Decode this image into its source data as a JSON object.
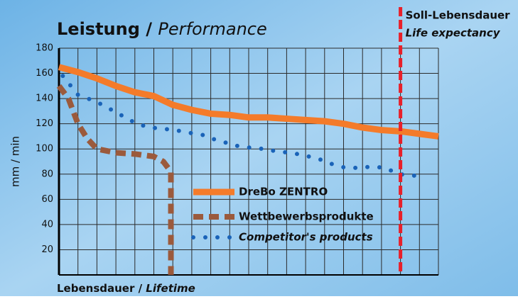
{
  "chart_data": {
    "type": "line",
    "title": [
      "Leistung /",
      "Performance"
    ],
    "x_label": [
      "Lebensdauer /",
      "Lifetime"
    ],
    "y_label": "mm / min",
    "annotation": {
      "x": 18,
      "color": "#e8202a",
      "text": [
        "Soll-Lebensdauer",
        "Life expectancy"
      ]
    },
    "xlim": [
      0,
      20
    ],
    "xticks": [
      0,
      1,
      2,
      3,
      4,
      5,
      6,
      7,
      8,
      9,
      10,
      11,
      12,
      13,
      14,
      15,
      16,
      17,
      18,
      19,
      20
    ],
    "ylim": [
      0,
      180
    ],
    "yticks": [
      20,
      40,
      60,
      80,
      100,
      120,
      140,
      160,
      180
    ],
    "grid": true,
    "series": [
      {
        "name": "DreBo ZENTRO",
        "color": "#f47b2a",
        "style": "solid",
        "x": [
          0,
          1,
          2,
          3,
          4,
          5,
          6,
          7,
          8,
          9,
          10,
          11,
          12,
          13,
          14,
          15,
          16,
          17,
          18,
          19,
          20
        ],
        "values": [
          165,
          161,
          156,
          150,
          145,
          142,
          135,
          131,
          128,
          127,
          125,
          125,
          124,
          123,
          122,
          120,
          117,
          115,
          114,
          112,
          110
        ]
      },
      {
        "name": "Wettbewerbsprodukte",
        "color": "#9b5a3c",
        "style": "dashed",
        "x": [
          0,
          0.5,
          1,
          1.5,
          2,
          3,
          4,
          5,
          5.5,
          5.9,
          5.9
        ],
        "values": [
          150,
          140,
          120,
          108,
          100,
          97,
          96,
          94,
          90,
          82,
          0
        ]
      },
      {
        "name": "Competitor's products",
        "color": "#1a63b8",
        "style": "dotted",
        "x": [
          0.2,
          1.0,
          1.7,
          2.3,
          2.9,
          3.5,
          4.1,
          4.8,
          5.5,
          6.1,
          6.8,
          7.6,
          8.1,
          8.8,
          9.5,
          10.1,
          10.8,
          11.5,
          12.2,
          12.9,
          13.7,
          14.4,
          15.1,
          15.8,
          16.5,
          17.2,
          17.9,
          18.6,
          19.3
        ],
        "values": [
          158,
          143,
          139,
          135,
          130,
          125,
          120,
          117,
          116,
          115,
          113,
          111,
          108,
          105,
          102,
          101,
          100,
          98,
          97,
          95,
          92,
          88,
          85,
          85,
          86,
          85,
          80,
          79,
          78
        ]
      }
    ]
  }
}
